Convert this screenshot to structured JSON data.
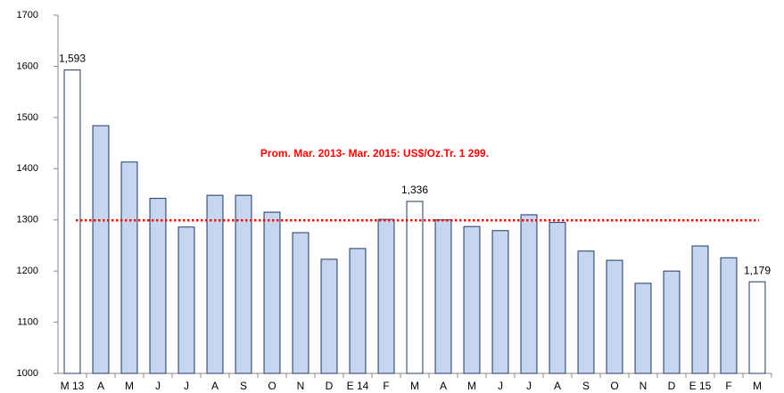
{
  "chart_data": {
    "type": "bar",
    "categories": [
      "M 13",
      "A",
      "M",
      "J",
      "J",
      "A",
      "S",
      "O",
      "N",
      "D",
      "E 14",
      "F",
      "M",
      "A",
      "M",
      "J",
      "J",
      "A",
      "S",
      "O",
      "N",
      "D",
      "E 15",
      "F",
      "M"
    ],
    "values": [
      1593,
      1484,
      1413,
      1342,
      1286,
      1348,
      1348,
      1315,
      1275,
      1223,
      1244,
      1301,
      1336,
      1300,
      1287,
      1279,
      1310,
      1295,
      1239,
      1221,
      1176,
      1200,
      1249,
      1226,
      1179
    ],
    "value_labels": [
      "1,593",
      null,
      null,
      null,
      null,
      null,
      null,
      null,
      null,
      null,
      null,
      null,
      "1,336",
      null,
      null,
      null,
      null,
      null,
      null,
      null,
      null,
      null,
      null,
      null,
      "1,179"
    ],
    "colors": [
      "#ffffff",
      "#c6d6ef",
      "#c6d6ef",
      "#c6d6ef",
      "#c6d6ef",
      "#c6d6ef",
      "#c6d6ef",
      "#c6d6ef",
      "#c6d6ef",
      "#c6d6ef",
      "#c6d6ef",
      "#c6d6ef",
      "#ffffff",
      "#c6d6ef",
      "#c6d6ef",
      "#c6d6ef",
      "#c6d6ef",
      "#c6d6ef",
      "#c6d6ef",
      "#c6d6ef",
      "#c6d6ef",
      "#c6d6ef",
      "#c6d6ef",
      "#c6d6ef",
      "#ffffff"
    ],
    "edge_color": "#1f3864",
    "ylim": [
      1000,
      1700
    ],
    "yticks": [
      1000,
      1100,
      1200,
      1300,
      1400,
      1500,
      1600,
      1700
    ],
    "reference_line": {
      "value": 1299,
      "color": "#ff0000"
    },
    "annotation": "Prom. Mar. 2013- Mar. 2015: US$/Oz.Tr. 1 299."
  }
}
